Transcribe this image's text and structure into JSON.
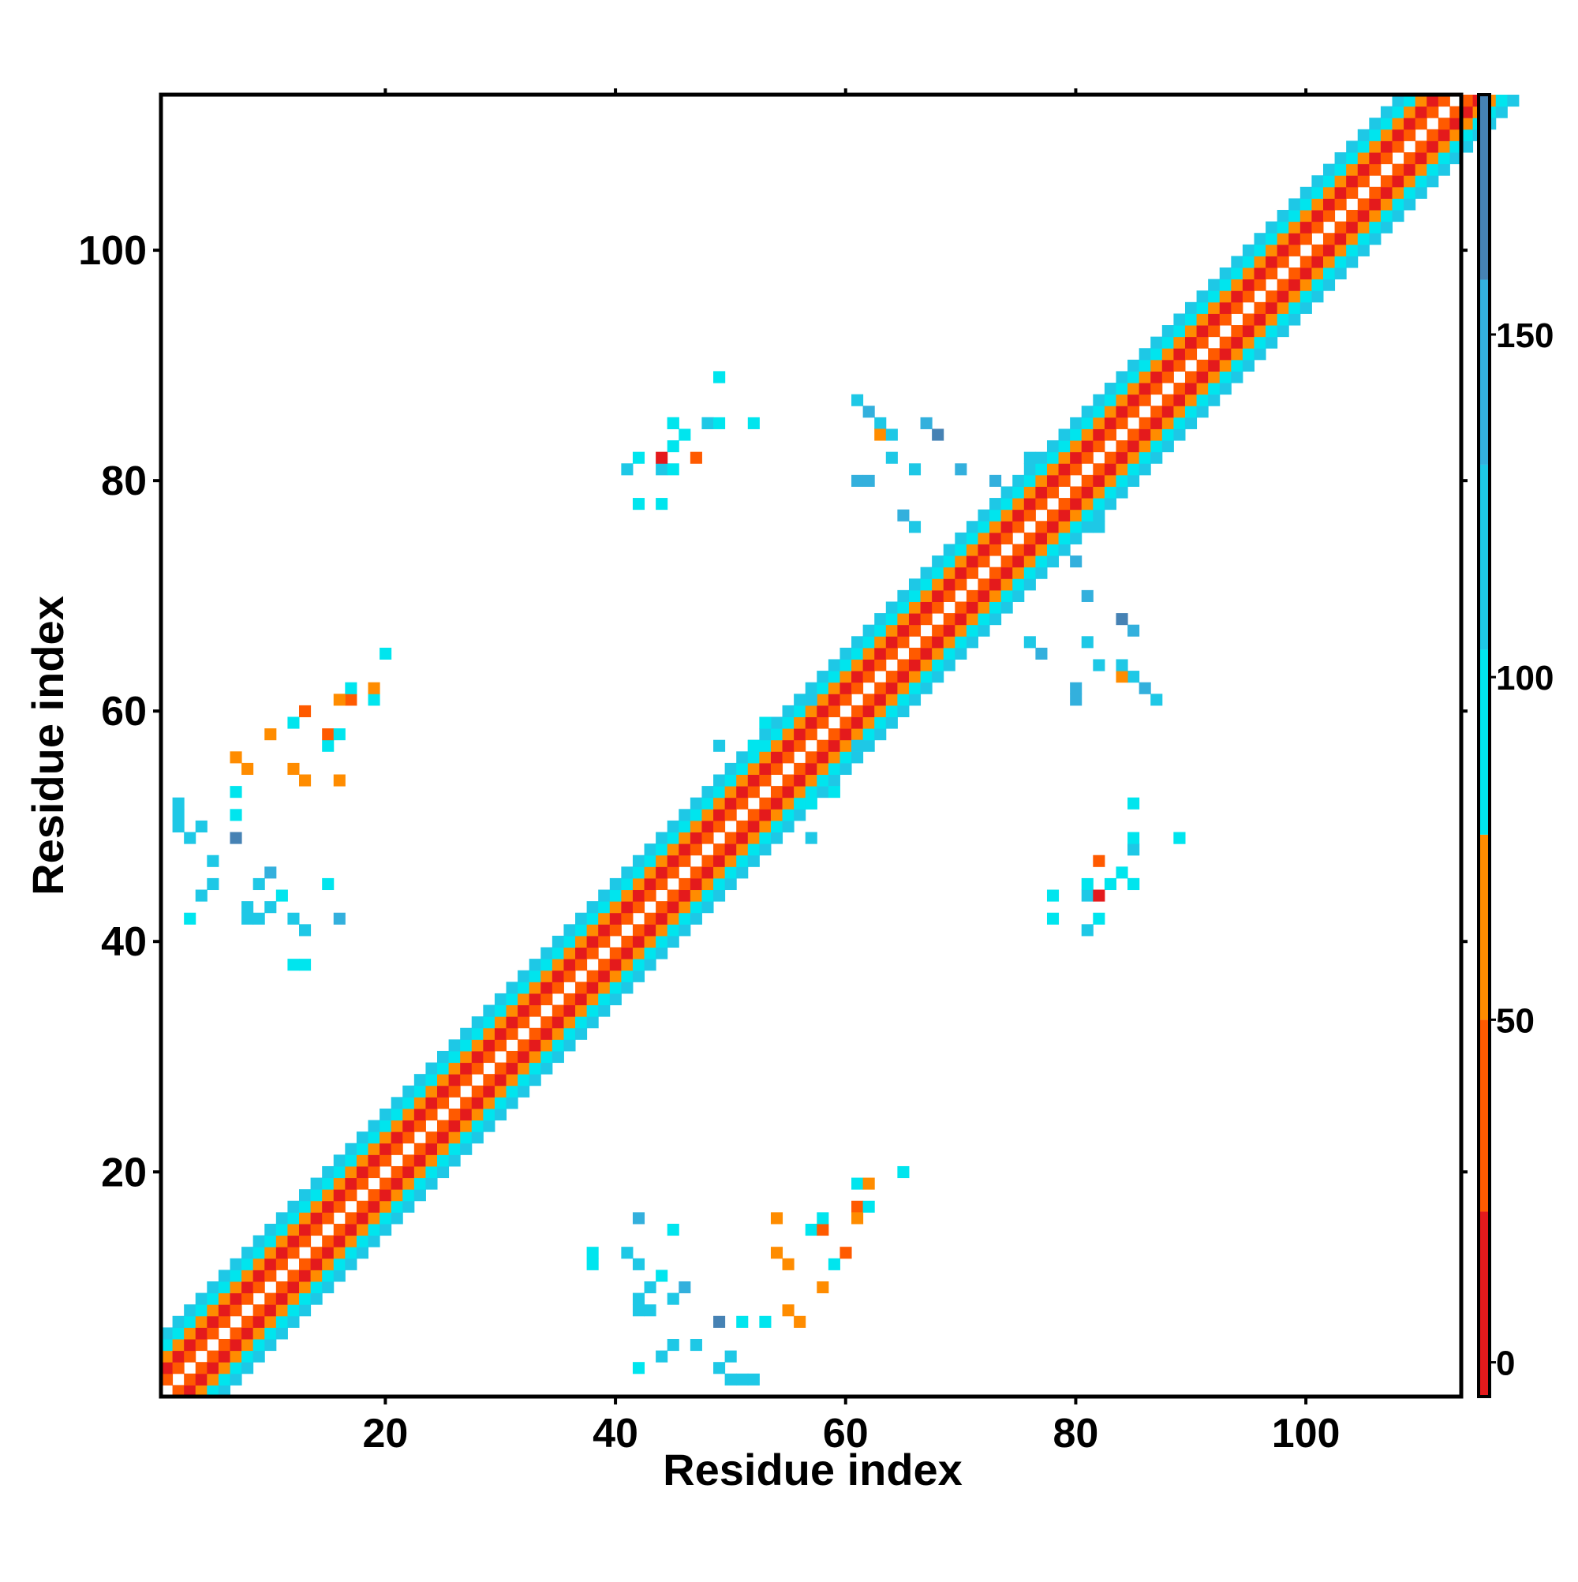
{
  "chart_data": {
    "type": "heatmap",
    "title": "",
    "xlabel": "Residue index",
    "ylabel": "Residue index",
    "xlim": [
      0.5,
      113.5
    ],
    "ylim": [
      0.5,
      113.5
    ],
    "x_ticks": [
      20,
      40,
      60,
      80,
      100
    ],
    "y_ticks": [
      20,
      40,
      60,
      80,
      100
    ],
    "colorbar": {
      "range": [
        -5,
        185
      ],
      "ticks": [
        0,
        50,
        100,
        150
      ],
      "stops": [
        {
          "from": -5,
          "to": 22,
          "color": "#e41a1c"
        },
        {
          "from": 22,
          "to": 50,
          "color": "#ff5a00"
        },
        {
          "from": 50,
          "to": 77,
          "color": "#ff8c00"
        },
        {
          "from": 77,
          "to": 104,
          "color": "#00e5ee"
        },
        {
          "from": 104,
          "to": 131,
          "color": "#1ec8e6"
        },
        {
          "from": 131,
          "to": 158,
          "color": "#33b0dd"
        },
        {
          "from": 158,
          "to": 185,
          "color": "#4682b4"
        }
      ]
    },
    "diagonal_band": {
      "residues": [
        1,
        113
      ],
      "pattern_note": "values depend on |i-j| (band to |i-j| = 5)",
      "offset_values": {
        "1": 45,
        "2": 10,
        "3": 60,
        "4": 90,
        "5": 115
      }
    },
    "off_diagonal_contacts": [
      {
        "i": 3,
        "j": 42,
        "v": 100
      },
      {
        "i": 4,
        "j": 44,
        "v": 130
      },
      {
        "i": 5,
        "j": 45,
        "v": 120
      },
      {
        "i": 2,
        "j": 50,
        "v": 120
      },
      {
        "i": 2,
        "j": 51,
        "v": 110
      },
      {
        "i": 2,
        "j": 52,
        "v": 105
      },
      {
        "i": 3,
        "j": 49,
        "v": 120
      },
      {
        "i": 4,
        "j": 50,
        "v": 130
      },
      {
        "i": 5,
        "j": 47,
        "v": 110
      },
      {
        "i": 7,
        "j": 49,
        "v": 165
      },
      {
        "i": 7,
        "j": 51,
        "v": 100
      },
      {
        "i": 7,
        "j": 53,
        "v": 95
      },
      {
        "i": 7,
        "j": 56,
        "v": 70
      },
      {
        "i": 8,
        "j": 42,
        "v": 110
      },
      {
        "i": 8,
        "j": 43,
        "v": 120
      },
      {
        "i": 9,
        "j": 42,
        "v": 105
      },
      {
        "i": 9,
        "j": 45,
        "v": 120
      },
      {
        "i": 10,
        "j": 46,
        "v": 140
      },
      {
        "i": 10,
        "j": 43,
        "v": 110
      },
      {
        "i": 11,
        "j": 44,
        "v": 100
      },
      {
        "i": 12,
        "j": 38,
        "v": 95
      },
      {
        "i": 12,
        "j": 42,
        "v": 110
      },
      {
        "i": 13,
        "j": 38,
        "v": 100
      },
      {
        "i": 13,
        "j": 41,
        "v": 130
      },
      {
        "i": 15,
        "j": 45,
        "v": 95
      },
      {
        "i": 16,
        "j": 42,
        "v": 140
      },
      {
        "i": 16,
        "j": 54,
        "v": 65
      },
      {
        "i": 15,
        "j": 57,
        "v": 90
      },
      {
        "i": 15,
        "j": 58,
        "v": 45
      },
      {
        "i": 16,
        "j": 58,
        "v": 95
      },
      {
        "i": 17,
        "j": 61,
        "v": 40
      },
      {
        "i": 16,
        "j": 61,
        "v": 60
      },
      {
        "i": 17,
        "j": 62,
        "v": 90
      },
      {
        "i": 19,
        "j": 61,
        "v": 95
      },
      {
        "i": 19,
        "j": 62,
        "v": 60
      },
      {
        "i": 20,
        "j": 65,
        "v": 95
      },
      {
        "i": 10,
        "j": 58,
        "v": 60
      },
      {
        "i": 12,
        "j": 59,
        "v": 95
      },
      {
        "i": 13,
        "j": 60,
        "v": 40
      },
      {
        "i": 8,
        "j": 55,
        "v": 65
      },
      {
        "i": 12,
        "j": 55,
        "v": 70
      },
      {
        "i": 13,
        "j": 54,
        "v": 70
      },
      {
        "i": 42,
        "j": 82,
        "v": 95
      },
      {
        "i": 45,
        "j": 83,
        "v": 100
      },
      {
        "i": 44,
        "j": 81,
        "v": 120
      },
      {
        "i": 45,
        "j": 85,
        "v": 95
      },
      {
        "i": 48,
        "j": 85,
        "v": 95
      },
      {
        "i": 49,
        "j": 89,
        "v": 90
      },
      {
        "i": 47,
        "j": 82,
        "v": 40
      },
      {
        "i": 46,
        "j": 84,
        "v": 95
      },
      {
        "i": 52,
        "j": 85,
        "v": 90
      },
      {
        "i": 57,
        "j": 61,
        "v": 120
      },
      {
        "i": 53,
        "j": 59,
        "v": 100
      },
      {
        "i": 49,
        "j": 57,
        "v": 110
      },
      {
        "i": 52,
        "j": 57,
        "v": 100
      },
      {
        "i": 80,
        "j": 61,
        "v": 150
      },
      {
        "i": 80,
        "j": 62,
        "v": 140
      },
      {
        "i": 82,
        "j": 64,
        "v": 110
      },
      {
        "i": 81,
        "j": 66,
        "v": 120
      },
      {
        "i": 85,
        "j": 63,
        "v": 130
      },
      {
        "i": 84,
        "j": 63,
        "v": 75
      },
      {
        "i": 84,
        "j": 64,
        "v": 120
      },
      {
        "i": 86,
        "j": 62,
        "v": 140
      },
      {
        "i": 85,
        "j": 67,
        "v": 150
      },
      {
        "i": 87,
        "j": 61,
        "v": 110
      },
      {
        "i": 84,
        "j": 68,
        "v": 160
      },
      {
        "i": 81,
        "j": 70,
        "v": 155
      },
      {
        "i": 80,
        "j": 73,
        "v": 150
      },
      {
        "i": 82,
        "j": 76,
        "v": 120
      },
      {
        "i": 78,
        "j": 44,
        "v": 100
      },
      {
        "i": 81,
        "j": 45,
        "v": 95
      },
      {
        "i": 82,
        "j": 44,
        "v": 20
      },
      {
        "i": 85,
        "j": 45,
        "v": 95
      },
      {
        "i": 85,
        "j": 48,
        "v": 110
      },
      {
        "i": 89,
        "j": 49,
        "v": 95
      },
      {
        "i": 78,
        "j": 42,
        "v": 95
      },
      {
        "i": 81,
        "j": 41,
        "v": 105
      },
      {
        "i": 85,
        "j": 49,
        "v": 100
      },
      {
        "i": 77,
        "j": 65,
        "v": 140
      },
      {
        "i": 76,
        "j": 66,
        "v": 130
      }
    ]
  }
}
